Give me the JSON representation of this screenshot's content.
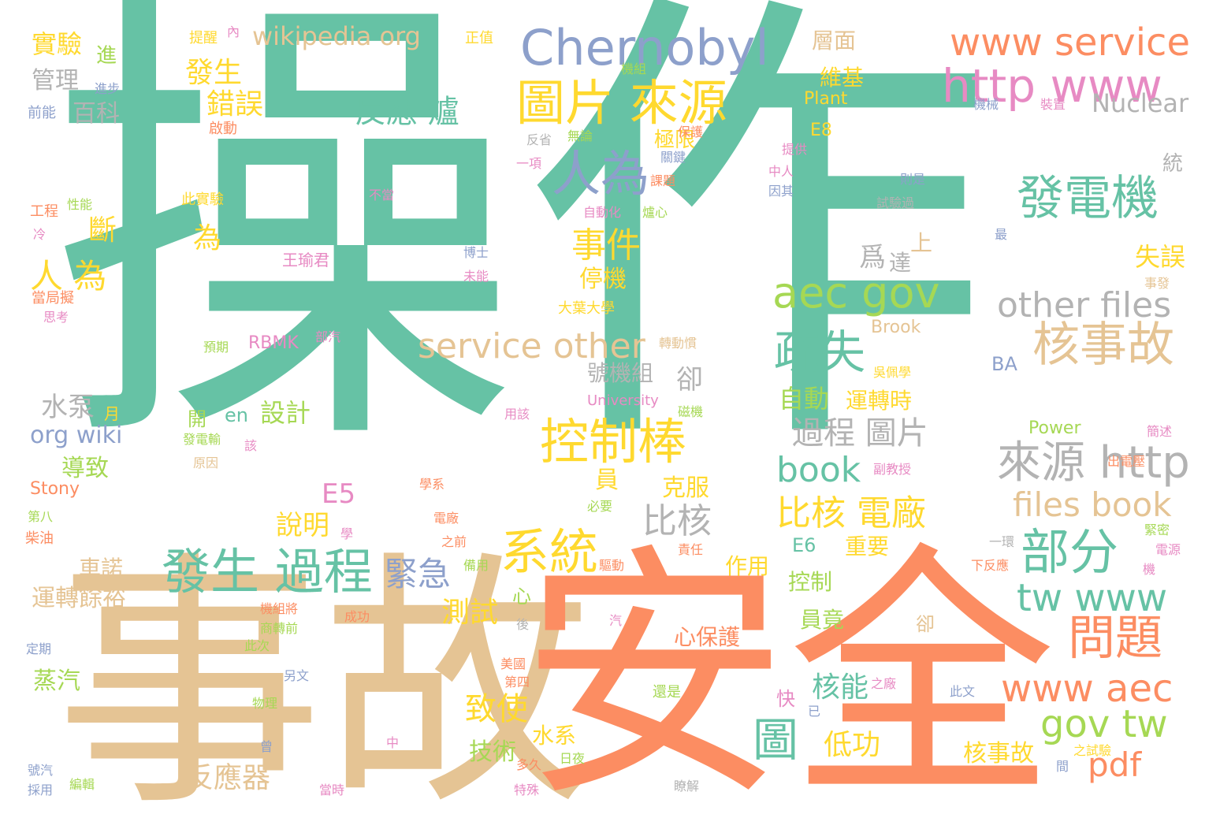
{
  "palette": {
    "teal": "#66c2a5",
    "orange": "#fc8d62",
    "blue": "#8da0cb",
    "pink": "#e78ac3",
    "lime": "#a6d854",
    "yellow": "#ffd92f",
    "tan": "#e5c494",
    "gray": "#b3b3b3"
  },
  "words": [
    {
      "text": "操作",
      "color": "teal",
      "weight": 1.0
    },
    {
      "text": "事故",
      "color": "tan",
      "weight": 0.62
    },
    {
      "text": "安全",
      "color": "orange",
      "weight": 0.62
    },
    {
      "text": "Chernobyl",
      "color": "blue",
      "weight": 0.14
    },
    {
      "text": "http www",
      "color": "pink",
      "weight": 0.14
    },
    {
      "text": "www service",
      "color": "orange",
      "weight": 0.11
    },
    {
      "text": "圖片 來源",
      "color": "yellow",
      "weight": 0.13
    },
    {
      "text": "反應 爐",
      "color": "teal",
      "weight": 0.07
    },
    {
      "text": "人為",
      "color": "blue",
      "weight": 0.14
    },
    {
      "text": "發電機",
      "color": "teal",
      "weight": 0.13
    },
    {
      "text": "aec gov",
      "color": "lime",
      "weight": 0.12
    },
    {
      "text": "other files",
      "color": "gray",
      "weight": 0.11
    },
    {
      "text": "核事故",
      "color": "tan",
      "weight": 0.14
    },
    {
      "text": "service other",
      "color": "tan",
      "weight": 0.11
    },
    {
      "text": "控制棒",
      "color": "yellow",
      "weight": 0.14
    },
    {
      "text": "疏失",
      "color": "teal",
      "weight": 0.13
    },
    {
      "text": "系統",
      "color": "yellow",
      "weight": 0.14
    },
    {
      "text": "部分",
      "color": "teal",
      "weight": 0.14
    },
    {
      "text": "來源 http",
      "color": "gray",
      "weight": 0.13
    },
    {
      "text": "發生 過程",
      "color": "teal",
      "weight": 0.14
    },
    {
      "text": "tw www",
      "color": "teal",
      "weight": 0.11
    },
    {
      "text": "問題",
      "color": "orange",
      "weight": 0.13
    },
    {
      "text": "www aec",
      "color": "orange",
      "weight": 0.11
    },
    {
      "text": "gov tw",
      "color": "lime",
      "weight": 0.11
    },
    {
      "text": "files book",
      "color": "tan",
      "weight": 0.1
    },
    {
      "text": "pdf",
      "color": "orange",
      "weight": 0.1
    },
    {
      "text": "圖",
      "color": "teal",
      "weight": 0.12
    },
    {
      "text": "book",
      "color": "teal",
      "weight": 0.1
    },
    {
      "text": "比核 電廠",
      "color": "yellow",
      "weight": 0.09
    },
    {
      "text": "過程 圖片",
      "color": "gray",
      "weight": 0.08
    },
    {
      "text": "緊急",
      "color": "blue",
      "weight": 0.09
    },
    {
      "text": "事件",
      "color": "yellow",
      "weight": 0.09
    },
    {
      "text": "比核",
      "color": "gray",
      "weight": 0.08
    },
    {
      "text": "人 為",
      "color": "yellow",
      "weight": 0.08
    },
    {
      "text": "wikipedia org",
      "color": "tan",
      "weight": 0.05
    },
    {
      "text": "Nuclear",
      "color": "gray",
      "weight": 0.06
    },
    {
      "text": "發生",
      "color": "yellow",
      "weight": 0.07
    },
    {
      "text": "錯誤",
      "color": "yellow",
      "weight": 0.07
    },
    {
      "text": "斷",
      "color": "yellow",
      "weight": 0.07
    },
    {
      "text": "為",
      "color": "yellow",
      "weight": 0.07
    },
    {
      "text": "實驗",
      "color": "yellow",
      "weight": 0.06
    },
    {
      "text": "百科",
      "color": "gray",
      "weight": 0.05
    },
    {
      "text": "管理",
      "color": "gray",
      "weight": 0.05
    },
    {
      "text": "org wiki",
      "color": "blue",
      "weight": 0.05
    },
    {
      "text": "水泵",
      "color": "gray",
      "weight": 0.06
    },
    {
      "text": "導致",
      "color": "lime",
      "weight": 0.05
    },
    {
      "text": "設計",
      "color": "lime",
      "weight": 0.06
    },
    {
      "text": "反應器",
      "color": "tan",
      "weight": 0.07
    },
    {
      "text": "致使",
      "color": "yellow",
      "weight": 0.07
    },
    {
      "text": "測試",
      "color": "yellow",
      "weight": 0.06
    },
    {
      "text": "說明",
      "color": "yellow",
      "weight": 0.06
    },
    {
      "text": "E5",
      "color": "pink",
      "weight": 0.06
    },
    {
      "text": "失誤",
      "color": "yellow",
      "weight": 0.06
    },
    {
      "text": "自動",
      "color": "lime",
      "weight": 0.06
    },
    {
      "text": "運轉時",
      "color": "yellow",
      "weight": 0.05
    },
    {
      "text": "核能",
      "color": "teal",
      "weight": 0.06
    },
    {
      "text": "低功",
      "color": "yellow",
      "weight": 0.06
    },
    {
      "text": "核事故",
      "color": "yellow",
      "weight": 0.05
    },
    {
      "text": "卻",
      "color": "gray",
      "weight": 0.06
    },
    {
      "text": "停機",
      "color": "yellow",
      "weight": 0.05
    },
    {
      "text": "號機組",
      "color": "gray",
      "weight": 0.05
    },
    {
      "text": "爲",
      "color": "gray",
      "weight": 0.06
    },
    {
      "text": "上",
      "color": "tan",
      "weight": 0.05
    },
    {
      "text": "達",
      "color": "gray",
      "weight": 0.05
    },
    {
      "text": "員",
      "color": "yellow",
      "weight": 0.05
    },
    {
      "text": "克服",
      "color": "yellow",
      "weight": 0.05
    },
    {
      "text": "技術",
      "color": "lime",
      "weight": 0.05
    },
    {
      "text": "水系",
      "color": "yellow",
      "weight": 0.05
    },
    {
      "text": "心保護",
      "color": "orange",
      "weight": 0.05
    },
    {
      "text": "作用",
      "color": "yellow",
      "weight": 0.05
    },
    {
      "text": "控制",
      "color": "lime",
      "weight": 0.05
    },
    {
      "text": "員竟",
      "color": "lime",
      "weight": 0.05
    },
    {
      "text": "重要",
      "color": "yellow",
      "weight": 0.05
    },
    {
      "text": "E6",
      "color": "teal",
      "weight": 0.04
    },
    {
      "text": "車諾",
      "color": "tan",
      "weight": 0.05
    },
    {
      "text": "運轉餘裕",
      "color": "tan",
      "weight": 0.05
    },
    {
      "text": "蒸汽",
      "color": "lime",
      "weight": 0.05
    },
    {
      "text": "進",
      "color": "lime",
      "weight": 0.05
    },
    {
      "text": "極限",
      "color": "yellow",
      "weight": 0.04
    },
    {
      "text": "維基",
      "color": "yellow",
      "weight": 0.05
    },
    {
      "text": "層面",
      "color": "tan",
      "weight": 0.05
    },
    {
      "text": "Plant",
      "color": "yellow",
      "weight": 0.04
    },
    {
      "text": "E8",
      "color": "yellow",
      "weight": 0.04
    },
    {
      "text": "統",
      "color": "gray",
      "weight": 0.04
    },
    {
      "text": "BA",
      "color": "blue",
      "weight": 0.04
    },
    {
      "text": "Brook",
      "color": "tan",
      "weight": 0.04
    },
    {
      "text": "Power",
      "color": "lime",
      "weight": 0.04
    },
    {
      "text": "Stony",
      "color": "orange",
      "weight": 0.04
    },
    {
      "text": "University",
      "color": "pink",
      "weight": 0.035
    },
    {
      "text": "RBMK",
      "color": "pink",
      "weight": 0.04
    },
    {
      "text": "en",
      "color": "teal",
      "weight": 0.04
    },
    {
      "text": "開",
      "color": "lime",
      "weight": 0.04
    },
    {
      "text": "月",
      "color": "yellow",
      "weight": 0.035
    },
    {
      "text": "心",
      "color": "lime",
      "weight": 0.035
    },
    {
      "text": "快",
      "color": "pink",
      "weight": 0.035
    },
    {
      "text": "卻",
      "color": "tan",
      "weight": 0.035
    },
    {
      "text": "王瑜君",
      "color": "pink",
      "weight": 0.035
    },
    {
      "text": "博士",
      "color": "blue",
      "weight": 0.03
    },
    {
      "text": "未能",
      "color": "pink",
      "weight": 0.03
    },
    {
      "text": "提醒",
      "color": "yellow",
      "weight": 0.03
    },
    {
      "text": "內",
      "color": "pink",
      "weight": 0.03
    },
    {
      "text": "正值",
      "color": "yellow",
      "weight": 0.03
    },
    {
      "text": "機組",
      "color": "lime",
      "weight": 0.03
    },
    {
      "text": "進步",
      "color": "blue",
      "weight": 0.03
    },
    {
      "text": "前能",
      "color": "blue",
      "weight": 0.03
    },
    {
      "text": "啟動",
      "color": "orange",
      "weight": 0.03
    },
    {
      "text": "無論",
      "color": "lime",
      "weight": 0.03
    },
    {
      "text": "反省",
      "color": "gray",
      "weight": 0.03
    },
    {
      "text": "保護",
      "color": "orange",
      "weight": 0.03
    },
    {
      "text": "關鍵",
      "color": "blue",
      "weight": 0.03
    },
    {
      "text": "一項",
      "color": "pink",
      "weight": 0.03
    },
    {
      "text": "課題",
      "color": "orange",
      "weight": 0.03
    },
    {
      "text": "不當",
      "color": "pink",
      "weight": 0.03
    },
    {
      "text": "此實驗",
      "color": "yellow",
      "weight": 0.03
    },
    {
      "text": "自動化",
      "color": "pink",
      "weight": 0.03
    },
    {
      "text": "爐心",
      "color": "lime",
      "weight": 0.03
    },
    {
      "text": "工程",
      "color": "orange",
      "weight": 0.03
    },
    {
      "text": "性能",
      "color": "lime",
      "weight": 0.03
    },
    {
      "text": "冷",
      "color": "pink",
      "weight": 0.03
    },
    {
      "text": "當局擬",
      "color": "orange",
      "weight": 0.03
    },
    {
      "text": "思考",
      "color": "pink",
      "weight": 0.03
    },
    {
      "text": "機械",
      "color": "blue",
      "weight": 0.03
    },
    {
      "text": "裝置",
      "color": "pink",
      "weight": 0.03
    },
    {
      "text": "提供",
      "color": "pink",
      "weight": 0.03
    },
    {
      "text": "中人",
      "color": "pink",
      "weight": 0.03
    },
    {
      "text": "因其",
      "color": "blue",
      "weight": 0.03
    },
    {
      "text": "則是",
      "color": "blue",
      "weight": 0.03
    },
    {
      "text": "試驗過",
      "color": "gray",
      "weight": 0.03
    },
    {
      "text": "最",
      "color": "blue",
      "weight": 0.03
    },
    {
      "text": "事發",
      "color": "tan",
      "weight": 0.03
    },
    {
      "text": "大葉大學",
      "color": "yellow",
      "weight": 0.03
    },
    {
      "text": "部汽",
      "color": "pink",
      "weight": 0.03
    },
    {
      "text": "轉動慣",
      "color": "tan",
      "weight": 0.03
    },
    {
      "text": "預期",
      "color": "lime",
      "weight": 0.03
    },
    {
      "text": "吳佩學",
      "color": "yellow",
      "weight": 0.03
    },
    {
      "text": "磁機",
      "color": "lime",
      "weight": 0.03
    },
    {
      "text": "用該",
      "color": "pink",
      "weight": 0.03
    },
    {
      "text": "發電輸",
      "color": "lime",
      "weight": 0.03
    },
    {
      "text": "該",
      "color": "pink",
      "weight": 0.03
    },
    {
      "text": "原因",
      "color": "tan",
      "weight": 0.03
    },
    {
      "text": "副教授",
      "color": "pink",
      "weight": 0.03
    },
    {
      "text": "學系",
      "color": "orange",
      "weight": 0.03
    },
    {
      "text": "簡述",
      "color": "pink",
      "weight": 0.03
    },
    {
      "text": "出電壓",
      "color": "orange",
      "weight": 0.03
    },
    {
      "text": "第八",
      "color": "lime",
      "weight": 0.03
    },
    {
      "text": "電廠",
      "color": "orange",
      "weight": 0.03
    },
    {
      "text": "必要",
      "color": "lime",
      "weight": 0.03
    },
    {
      "text": "學",
      "color": "pink",
      "weight": 0.03
    },
    {
      "text": "之前",
      "color": "orange",
      "weight": 0.03
    },
    {
      "text": "責任",
      "color": "orange",
      "weight": 0.03
    },
    {
      "text": "一環",
      "color": "gray",
      "weight": 0.03
    },
    {
      "text": "緊密",
      "color": "lime",
      "weight": 0.03
    },
    {
      "text": "電源",
      "color": "pink",
      "weight": 0.03
    },
    {
      "text": "柴油",
      "color": "orange",
      "weight": 0.03
    },
    {
      "text": "備用",
      "color": "lime",
      "weight": 0.03
    },
    {
      "text": "驅動",
      "color": "orange",
      "weight": 0.03
    },
    {
      "text": "下反應",
      "color": "orange",
      "weight": 0.03
    },
    {
      "text": "機",
      "color": "pink",
      "weight": 0.03
    },
    {
      "text": "機組將",
      "color": "orange",
      "weight": 0.03
    },
    {
      "text": "成功",
      "color": "orange",
      "weight": 0.03
    },
    {
      "text": "商轉前",
      "color": "lime",
      "weight": 0.03
    },
    {
      "text": "後",
      "color": "gray",
      "weight": 0.03
    },
    {
      "text": "汽",
      "color": "pink",
      "weight": 0.03
    },
    {
      "text": "定期",
      "color": "blue",
      "weight": 0.03
    },
    {
      "text": "此次",
      "color": "lime",
      "weight": 0.03
    },
    {
      "text": "美國",
      "color": "orange",
      "weight": 0.03
    },
    {
      "text": "另文",
      "color": "blue",
      "weight": 0.03
    },
    {
      "text": "第四",
      "color": "orange",
      "weight": 0.03
    },
    {
      "text": "還是",
      "color": "lime",
      "weight": 0.03
    },
    {
      "text": "之廠",
      "color": "pink",
      "weight": 0.03
    },
    {
      "text": "此文",
      "color": "blue",
      "weight": 0.03
    },
    {
      "text": "已",
      "color": "blue",
      "weight": 0.03
    },
    {
      "text": "物理",
      "color": "lime",
      "weight": 0.03
    },
    {
      "text": "中",
      "color": "pink",
      "weight": 0.03
    },
    {
      "text": "曾",
      "color": "blue",
      "weight": 0.03
    },
    {
      "text": "號汽",
      "color": "blue",
      "weight": 0.03
    },
    {
      "text": "多久",
      "color": "orange",
      "weight": 0.03
    },
    {
      "text": "日夜",
      "color": "lime",
      "weight": 0.03
    },
    {
      "text": "之試驗",
      "color": "yellow",
      "weight": 0.03
    },
    {
      "text": "間",
      "color": "blue",
      "weight": 0.03
    },
    {
      "text": "採用",
      "color": "blue",
      "weight": 0.03
    },
    {
      "text": "編輯",
      "color": "lime",
      "weight": 0.03
    },
    {
      "text": "當時",
      "color": "pink",
      "weight": 0.03
    },
    {
      "text": "特殊",
      "color": "pink",
      "weight": 0.03
    },
    {
      "text": "瞭解",
      "color": "gray",
      "weight": 0.03
    }
  ]
}
